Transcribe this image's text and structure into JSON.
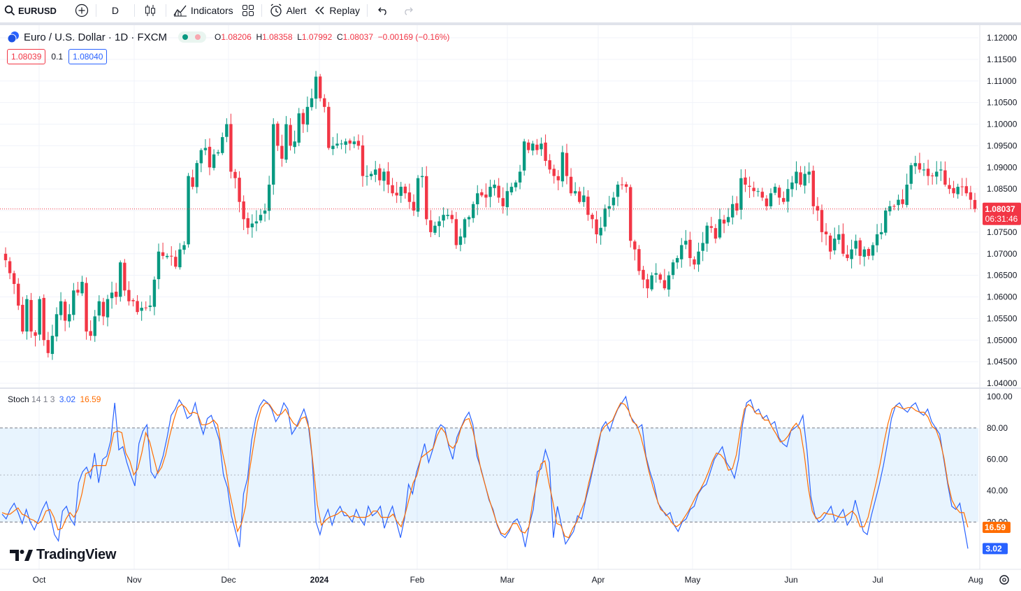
{
  "toolbar": {
    "symbol": "EURUSD",
    "interval": "D",
    "indicators_label": "Indicators",
    "alert_label": "Alert",
    "replay_label": "Replay",
    "icons": [
      "search-icon",
      "add-symbol-icon",
      "candles-icon",
      "indicators-icon",
      "templates-icon",
      "alert-icon",
      "replay-icon",
      "undo-icon",
      "redo-icon"
    ]
  },
  "legend": {
    "title": "Euro / U.S. Dollar · 1D · FXCM",
    "o_label": "O",
    "o": "1.08206",
    "h_label": "H",
    "h": "1.08358",
    "l_label": "L",
    "l": "1.07992",
    "c_label": "C",
    "c": "1.08037",
    "change": "−0.00169 (−0.16%)",
    "sell": "1.08039",
    "spread": "0.1",
    "buy": "1.08040"
  },
  "stoch_legend": {
    "name": "Stoch",
    "params": "14 1 3",
    "k": "3.02",
    "d": "16.59"
  },
  "watermark": "TradingView",
  "colors": {
    "up": "#089981",
    "down": "#f23645",
    "k_line": "#2962ff",
    "d_line": "#ff6d00",
    "band": "#2196f3"
  },
  "chart_data": [
    {
      "type": "candlestick",
      "title": "Euro / U.S. Dollar · 1D · FXCM",
      "x_ticks": [
        "Oct",
        "Nov",
        "Dec",
        "2024",
        "Feb",
        "Mar",
        "Apr",
        "May",
        "Jun",
        "Jul",
        "Aug"
      ],
      "y_ticks": [
        "1.04000",
        "1.04500",
        "1.05000",
        "1.05500",
        "1.06000",
        "1.06500",
        "1.07000",
        "1.07500",
        "1.08000",
        "1.08500",
        "1.09000",
        "1.09500",
        "1.10000",
        "1.10500",
        "1.11000",
        "1.11500",
        "1.12000"
      ],
      "ylim": [
        1.0392,
        1.1213
      ],
      "last_price": "1.08037",
      "countdown": "06:31:46",
      "closes": [
        1.0685,
        1.0655,
        1.063,
        1.058,
        1.052,
        1.0595,
        1.052,
        1.051,
        1.0595,
        1.05,
        1.047,
        1.051,
        1.056,
        1.059,
        1.0545,
        1.056,
        1.0615,
        1.061,
        1.0635,
        1.052,
        1.051,
        1.0555,
        1.059,
        1.0555,
        1.0595,
        1.061,
        1.06,
        1.068,
        1.0615,
        1.059,
        1.059,
        1.0565,
        1.0575,
        1.0575,
        1.058,
        1.064,
        1.0705,
        1.0695,
        1.0695,
        1.0695,
        1.067,
        1.071,
        1.072,
        1.088,
        1.0855,
        1.091,
        1.094,
        1.0945,
        1.09,
        1.093,
        1.0935,
        1.097,
        1.1,
        1.089,
        1.0875,
        1.082,
        1.078,
        1.076,
        1.077,
        1.0775,
        1.079,
        1.08,
        1.086,
        1.1,
        1.095,
        1.092,
        1.1,
        1.095,
        1.096,
        1.1025,
        1.1,
        1.104,
        1.106,
        1.111,
        1.106,
        1.104,
        1.0945,
        1.095,
        1.0955,
        1.0955,
        1.096,
        1.0955,
        1.096,
        1.095,
        1.088,
        1.088,
        1.0885,
        1.0895,
        1.087,
        1.089,
        1.086,
        1.084,
        1.0835,
        1.0855,
        1.084,
        1.082,
        1.08,
        1.0875,
        1.088,
        1.078,
        1.075,
        1.0765,
        1.0775,
        1.079,
        1.079,
        1.078,
        1.072,
        1.074,
        1.078,
        1.0785,
        1.0815,
        1.084,
        1.0835,
        1.083,
        1.0855,
        1.086,
        1.083,
        1.081,
        1.0845,
        1.0855,
        1.0865,
        1.089,
        1.096,
        1.094,
        1.0955,
        1.094,
        1.0955,
        1.0915,
        1.0895,
        1.088,
        1.087,
        1.0935,
        1.088,
        1.084,
        1.0845,
        1.082,
        1.0835,
        1.079,
        1.078,
        1.0745,
        1.076,
        1.0805,
        1.081,
        1.083,
        1.086,
        1.086,
        1.0855,
        1.073,
        1.071,
        1.066,
        1.064,
        1.062,
        1.065,
        1.0655,
        1.064,
        1.062,
        1.065,
        1.068,
        1.069,
        1.072,
        1.073,
        1.069,
        1.0675,
        1.0705,
        1.0725,
        1.0765,
        1.076,
        1.0735,
        1.078,
        1.077,
        1.0785,
        1.0815,
        1.08,
        1.0875,
        1.086,
        1.0855,
        1.0845,
        1.0845,
        1.083,
        1.081,
        1.084,
        1.0855,
        1.083,
        1.082,
        1.085,
        1.0865,
        1.089,
        1.086,
        1.0885,
        1.089,
        1.081,
        1.08,
        1.075,
        1.0745,
        1.0705,
        1.0735,
        1.0745,
        1.07,
        1.069,
        1.071,
        1.073,
        1.0695,
        1.071,
        1.0695,
        1.072,
        1.0745,
        1.075,
        1.08,
        1.081,
        1.081,
        1.0825,
        1.0815,
        1.086,
        1.0905,
        1.091,
        1.0895,
        1.0895,
        1.088,
        1.088,
        1.089,
        1.0895,
        1.086,
        1.085,
        1.084,
        1.0855,
        1.0855,
        1.084,
        1.0825,
        1.0804
      ]
    },
    {
      "type": "line",
      "title": "Stoch 14 1 3",
      "y_ticks": [
        "20.00",
        "40.00",
        "60.00",
        "80.00",
        "100.00"
      ],
      "ylim": [
        -6.6,
        104.9
      ],
      "band": [
        20,
        80
      ],
      "midline": 50,
      "last_k": "3.02",
      "last_d": "16.59",
      "series": [
        {
          "name": "3.02",
          "values": [
            25,
            22,
            28,
            32,
            26,
            19,
            28,
            20,
            15,
            21,
            28,
            33,
            24,
            12,
            8,
            27,
            30,
            22,
            18,
            45,
            52,
            55,
            48,
            64,
            45,
            60,
            62,
            72,
            96,
            66,
            68,
            58,
            50,
            43,
            70,
            78,
            82,
            52,
            48,
            54,
            62,
            74,
            88,
            92,
            98,
            94,
            86,
            88,
            96,
            84,
            76,
            86,
            88,
            80,
            72,
            50,
            42,
            24,
            14,
            4,
            38,
            48,
            72,
            86,
            94,
            98,
            96,
            92,
            84,
            88,
            96,
            92,
            76,
            80,
            86,
            92,
            84,
            62,
            20,
            12,
            22,
            28,
            18,
            26,
            30,
            24,
            24,
            20,
            28,
            22,
            18,
            30,
            24,
            26,
            30,
            16,
            24,
            30,
            20,
            10,
            22,
            44,
            38,
            52,
            60,
            70,
            58,
            66,
            78,
            82,
            80,
            68,
            60,
            74,
            80,
            86,
            90,
            82,
            62,
            54,
            44,
            34,
            28,
            18,
            12,
            10,
            14,
            20,
            22,
            16,
            4,
            18,
            28,
            52,
            54,
            66,
            58,
            10,
            30,
            18,
            6,
            10,
            14,
            24,
            22,
            34,
            44,
            56,
            66,
            80,
            84,
            78,
            86,
            92,
            96,
            100,
            88,
            84,
            80,
            82,
            62,
            52,
            44,
            32,
            28,
            24,
            26,
            18,
            14,
            20,
            22,
            28,
            30,
            38,
            42,
            44,
            52,
            60,
            64,
            68,
            58,
            54,
            48,
            60,
            82,
            96,
            98,
            90,
            92,
            86,
            88,
            82,
            84,
            74,
            70,
            68,
            78,
            80,
            82,
            88,
            66,
            36,
            24,
            20,
            22,
            26,
            30,
            20,
            24,
            28,
            18,
            22,
            34,
            24,
            14,
            12,
            24,
            34,
            44,
            56,
            70,
            86,
            94,
            96,
            92,
            90,
            94,
            96,
            90,
            88,
            92,
            84,
            80,
            76,
            60,
            44,
            30,
            28,
            32,
            18,
            3.02
          ]
        },
        {
          "name": "16.59",
          "values": [
            26,
            25,
            25,
            27,
            29,
            25,
            24,
            22,
            21,
            19,
            21,
            27,
            28,
            23,
            15,
            16,
            22,
            26,
            23,
            28,
            38,
            51,
            52,
            56,
            56,
            56,
            56,
            65,
            77,
            78,
            77,
            64,
            59,
            50,
            54,
            64,
            77,
            71,
            61,
            51,
            55,
            63,
            75,
            85,
            93,
            95,
            93,
            89,
            90,
            89,
            82,
            82,
            83,
            85,
            82,
            67,
            55,
            39,
            27,
            14,
            19,
            30,
            53,
            69,
            84,
            93,
            96,
            95,
            91,
            88,
            89,
            92,
            87,
            83,
            81,
            86,
            87,
            79,
            55,
            31,
            18,
            21,
            23,
            24,
            25,
            27,
            26,
            23,
            24,
            23,
            23,
            23,
            24,
            27,
            27,
            23,
            23,
            23,
            25,
            20,
            17,
            25,
            35,
            45,
            50,
            61,
            63,
            65,
            67,
            75,
            80,
            77,
            69,
            67,
            71,
            80,
            85,
            86,
            78,
            66,
            53,
            44,
            35,
            27,
            19,
            13,
            12,
            15,
            19,
            19,
            14,
            13,
            17,
            33,
            45,
            57,
            59,
            45,
            33,
            19,
            18,
            11,
            10,
            16,
            20,
            27,
            33,
            45,
            55,
            67,
            77,
            81,
            83,
            85,
            91,
            96,
            95,
            91,
            84,
            82,
            75,
            65,
            53,
            43,
            35,
            28,
            26,
            23,
            19,
            17,
            19,
            23,
            27,
            32,
            37,
            41,
            46,
            52,
            59,
            64,
            63,
            60,
            53,
            54,
            63,
            79,
            92,
            95,
            93,
            89,
            89,
            85,
            85,
            80,
            76,
            71,
            72,
            75,
            80,
            83,
            79,
            63,
            42,
            27,
            22,
            23,
            26,
            25,
            25,
            24,
            23,
            23,
            25,
            27,
            24,
            17,
            17,
            23,
            34,
            45,
            57,
            71,
            83,
            92,
            94,
            93,
            92,
            93,
            93,
            91,
            90,
            90,
            87,
            81,
            79,
            72,
            61,
            45,
            34,
            29,
            26,
            26,
            16.59
          ]
        }
      ]
    }
  ]
}
